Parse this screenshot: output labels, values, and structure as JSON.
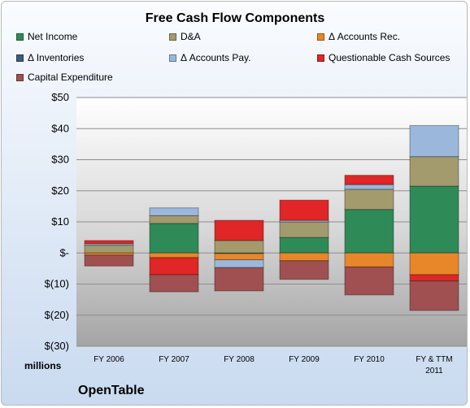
{
  "chart_data": {
    "type": "bar",
    "stacked": true,
    "title": "Free Cash Flow Components",
    "categories": [
      "FY 2006",
      "FY 2007",
      "FY 2008",
      "FY 2009",
      "FY 2010",
      "FY & TTM 2011"
    ],
    "ylim": [
      -30,
      50
    ],
    "yticks": [
      50,
      40,
      30,
      20,
      10,
      0,
      -10,
      -20,
      -30
    ],
    "ytick_labels": [
      "$50",
      "$40",
      "$30",
      "$20",
      "$10",
      "$-",
      "$(10)",
      "$(20)",
      "$(30)"
    ],
    "ylabel_units": "millions",
    "grid": true,
    "legend_position": "top",
    "series": [
      {
        "name": "Net Income",
        "color": "#2e8b57",
        "values": [
          0,
          9.5,
          -0.2,
          5,
          14,
          21.5
        ]
      },
      {
        "name": "D&A",
        "color": "#a39a6e",
        "values": [
          2.5,
          2.5,
          4,
          5,
          6.5,
          9.5
        ]
      },
      {
        "name": "Δ Accounts Rec.",
        "color": "#e8862a",
        "values": [
          -0.7,
          -1.5,
          -2,
          -2.5,
          -4.5,
          -7
        ]
      },
      {
        "name": "Δ Inventories",
        "color": "#3f5a7a",
        "values": [
          0,
          0,
          0,
          0,
          0,
          0
        ]
      },
      {
        "name": "Δ Accounts Pay.",
        "color": "#9bb8dc",
        "values": [
          0.5,
          2.5,
          -2.5,
          0.5,
          1.5,
          10
        ]
      },
      {
        "name": "Questionable Cash Sources",
        "color": "#e02626",
        "values": [
          1,
          -5.5,
          6.5,
          6.5,
          3,
          -2
        ]
      },
      {
        "name": "Capital Expenditure",
        "color": "#a05050",
        "values": [
          -3.5,
          -5.5,
          -7.5,
          -6,
          -9,
          -9.5
        ]
      }
    ]
  },
  "footer": {
    "company": "OpenTable"
  }
}
